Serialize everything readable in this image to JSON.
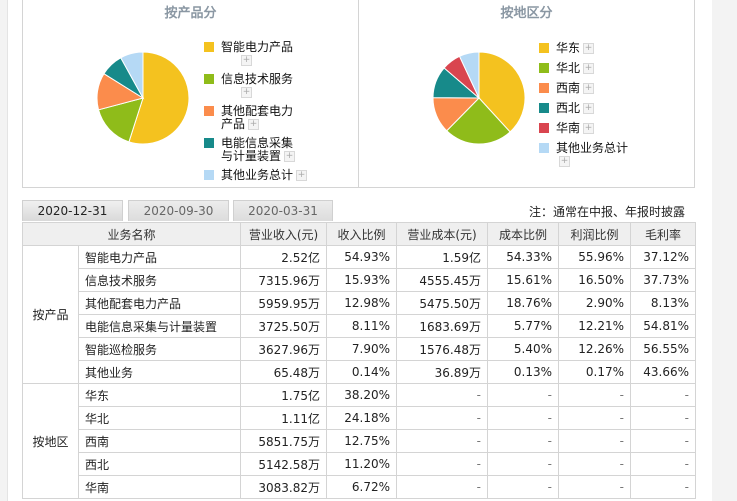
{
  "product_panel": {
    "title": "按产品分",
    "legend": [
      {
        "label": "智能电力产品",
        "color": "#f4c21f"
      },
      {
        "label": "信息技术服务",
        "color": "#8fbc1a"
      },
      {
        "label": "其他配套电力产品",
        "color": "#fb8c4c"
      },
      {
        "label": "电能信息采集与计量装置",
        "color": "#178a8a"
      },
      {
        "label": "其他业务总计",
        "color": "#b5d9f5"
      }
    ]
  },
  "region_panel": {
    "title": "按地区分",
    "legend": [
      {
        "label": "华东",
        "color": "#f4c21f"
      },
      {
        "label": "华北",
        "color": "#8fbc1a"
      },
      {
        "label": "西南",
        "color": "#fb8c4c"
      },
      {
        "label": "西北",
        "color": "#178a8a"
      },
      {
        "label": "华南",
        "color": "#d9454f"
      },
      {
        "label": "其他业务总计",
        "color": "#b5d9f5"
      }
    ]
  },
  "expand_icon": "+",
  "tabs": [
    {
      "label": "2020-12-31",
      "active": true
    },
    {
      "label": "2020-09-30",
      "active": false
    },
    {
      "label": "2020-03-31",
      "active": false
    }
  ],
  "note": "注：通常在中报、年报时披露",
  "table": {
    "headers": [
      "业务名称",
      "营业收入(元)",
      "收入比例",
      "营业成本(元)",
      "成本比例",
      "利润比例",
      "毛利率"
    ],
    "groups": [
      {
        "label": "按产品",
        "rows": [
          [
            "智能电力产品",
            "2.52亿",
            "54.93%",
            "1.59亿",
            "54.33%",
            "55.96%",
            "37.12%"
          ],
          [
            "信息技术服务",
            "7315.96万",
            "15.93%",
            "4555.45万",
            "15.61%",
            "16.50%",
            "37.73%"
          ],
          [
            "其他配套电力产品",
            "5959.95万",
            "12.98%",
            "5475.50万",
            "18.76%",
            "2.90%",
            "8.13%"
          ],
          [
            "电能信息采集与计量装置",
            "3725.50万",
            "8.11%",
            "1683.69万",
            "5.77%",
            "12.21%",
            "54.81%"
          ],
          [
            "智能巡检服务",
            "3627.96万",
            "7.90%",
            "1576.48万",
            "5.40%",
            "12.26%",
            "56.55%"
          ],
          [
            "其他业务",
            "65.48万",
            "0.14%",
            "36.89万",
            "0.13%",
            "0.17%",
            "43.66%"
          ]
        ]
      },
      {
        "label": "按地区",
        "rows": [
          [
            "华东",
            "1.75亿",
            "38.20%",
            "-",
            "-",
            "-",
            "-"
          ],
          [
            "华北",
            "1.11亿",
            "24.18%",
            "-",
            "-",
            "-",
            "-"
          ],
          [
            "西南",
            "5851.75万",
            "12.75%",
            "-",
            "-",
            "-",
            "-"
          ],
          [
            "西北",
            "5142.58万",
            "11.20%",
            "-",
            "-",
            "-",
            "-"
          ],
          [
            "华南",
            "3083.82万",
            "6.72%",
            "-",
            "-",
            "-",
            "-"
          ]
        ]
      }
    ]
  },
  "chart_data": [
    {
      "type": "pie",
      "title": "按产品分",
      "categories": [
        "智能电力产品",
        "信息技术服务",
        "其他配套电力产品",
        "电能信息采集与计量装置",
        "其他业务总计"
      ],
      "values": [
        54.93,
        15.93,
        12.98,
        8.11,
        8.04
      ],
      "colors": [
        "#f4c21f",
        "#8fbc1a",
        "#fb8c4c",
        "#178a8a",
        "#b5d9f5"
      ],
      "legend_position": "right"
    },
    {
      "type": "pie",
      "title": "按地区分",
      "categories": [
        "华东",
        "华北",
        "西南",
        "西北",
        "华南",
        "其他业务总计"
      ],
      "values": [
        38.2,
        24.18,
        12.75,
        11.2,
        6.72,
        6.95
      ],
      "colors": [
        "#f4c21f",
        "#8fbc1a",
        "#fb8c4c",
        "#178a8a",
        "#d9454f",
        "#b5d9f5"
      ],
      "legend_position": "right"
    }
  ]
}
